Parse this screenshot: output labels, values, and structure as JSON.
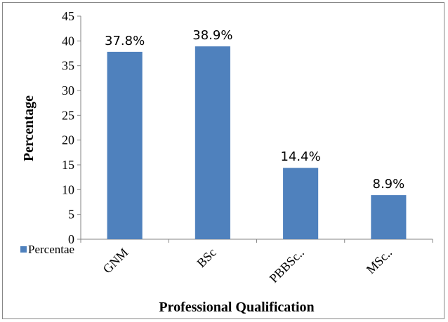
{
  "chart_data": {
    "type": "bar",
    "categories": [
      "GNM",
      "BSc",
      "PBBSc..",
      "MSc.."
    ],
    "series": [
      {
        "name": "Percentae",
        "values": [
          37.8,
          38.9,
          14.4,
          8.9
        ],
        "color": "#4f81bd"
      }
    ],
    "data_labels": [
      "37.8%",
      "38.9%",
      "14.4%",
      "8.9%"
    ],
    "title": "",
    "xlabel": "Professional Qualification",
    "ylabel": "Percentage",
    "ylim": [
      0,
      45
    ],
    "yticks": [
      "0",
      "5",
      "10",
      "15",
      "20",
      "25",
      "30",
      "35",
      "40",
      "45"
    ],
    "grid": false,
    "legend_position": "bottom-left"
  }
}
